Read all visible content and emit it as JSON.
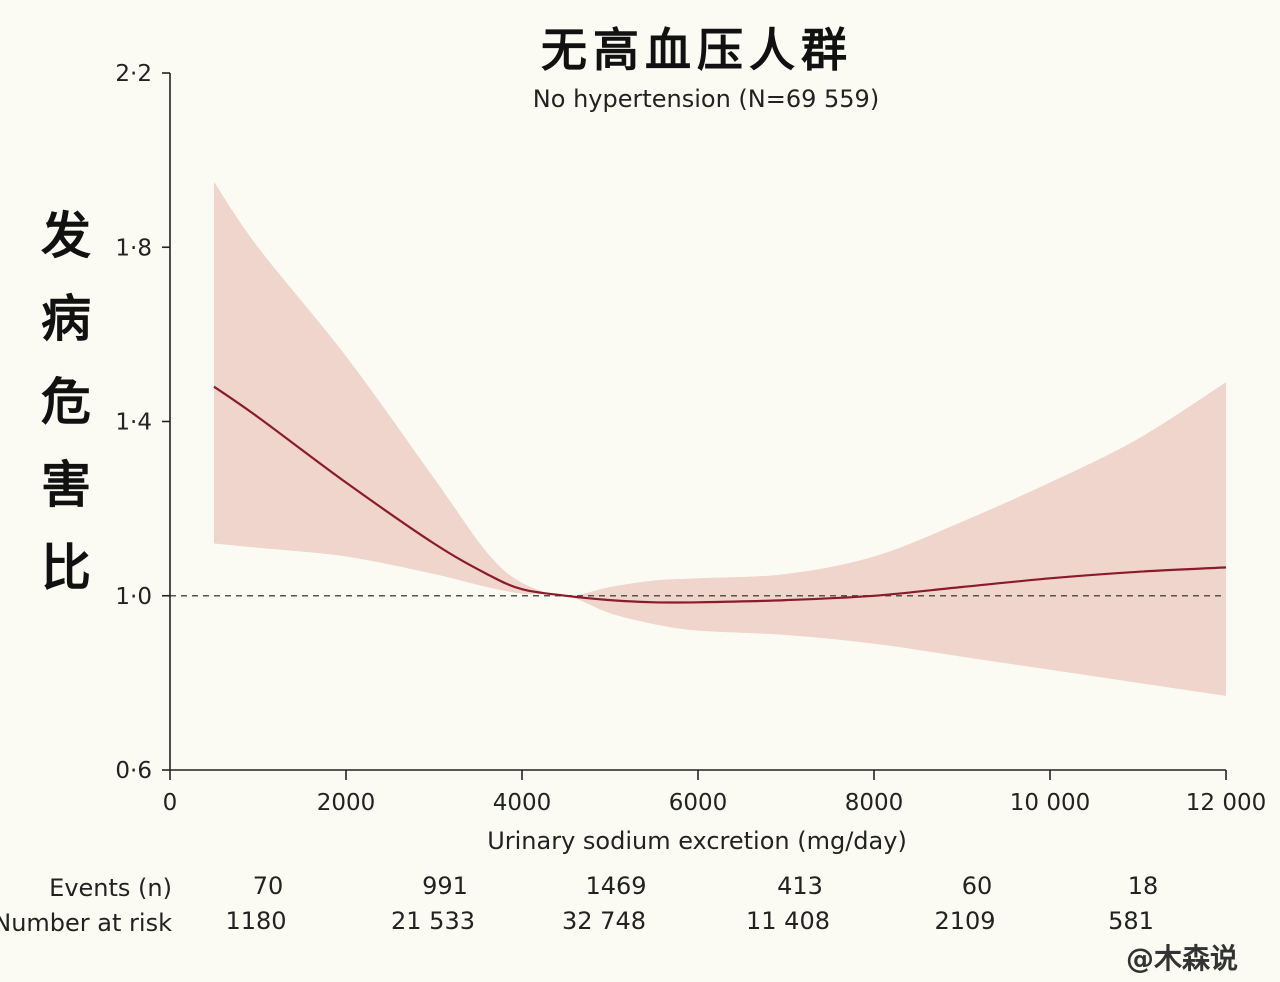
{
  "chart_data": {
    "type": "area",
    "title": "无高血压人群",
    "subtitle": "No hypertension (N=69 559)",
    "ylabel": "发病危害比",
    "xlabel": "Urinary sodium excretion (mg/day)",
    "xlim": [
      0,
      12000
    ],
    "ylim": [
      0.6,
      2.2
    ],
    "xticks": [
      "0",
      "2000",
      "4000",
      "6000",
      "8000",
      "10 000",
      "12 000"
    ],
    "yticks": [
      "0·6",
      "1·0",
      "1·4",
      "1·8",
      "2·2"
    ],
    "reference_line": 1.0,
    "series": [
      {
        "color": "#8b1a2b",
        "x": [
          500,
          1000,
          2000,
          3000,
          3600,
          4000,
          4500,
          5000,
          5500,
          6000,
          7000,
          8000,
          9000,
          10000,
          11000,
          12000
        ],
        "y": [
          1.48,
          1.41,
          1.26,
          1.12,
          1.05,
          1.015,
          1.0,
          0.99,
          0.985,
          0.985,
          0.99,
          1.0,
          1.02,
          1.04,
          1.055,
          1.065
        ],
        "lower": [
          1.12,
          1.11,
          1.09,
          1.05,
          1.02,
          1.005,
          1.0,
          0.96,
          0.935,
          0.92,
          0.91,
          0.89,
          0.86,
          0.83,
          0.8,
          0.77
        ],
        "upper": [
          1.95,
          1.8,
          1.55,
          1.27,
          1.1,
          1.03,
          1.0,
          1.02,
          1.035,
          1.04,
          1.05,
          1.09,
          1.17,
          1.26,
          1.36,
          1.49
        ]
      }
    ],
    "band_color": "#f0d5cc",
    "risk_table": {
      "events_label": "Events (n)",
      "risk_label": "Number at risk",
      "events": [
        "70",
        "991",
        "1469",
        "413",
        "60",
        "18"
      ],
      "at_risk": [
        "1180",
        "21 533",
        "32 748",
        "11 408",
        "2109",
        "581"
      ]
    }
  },
  "watermark": "@木森说"
}
